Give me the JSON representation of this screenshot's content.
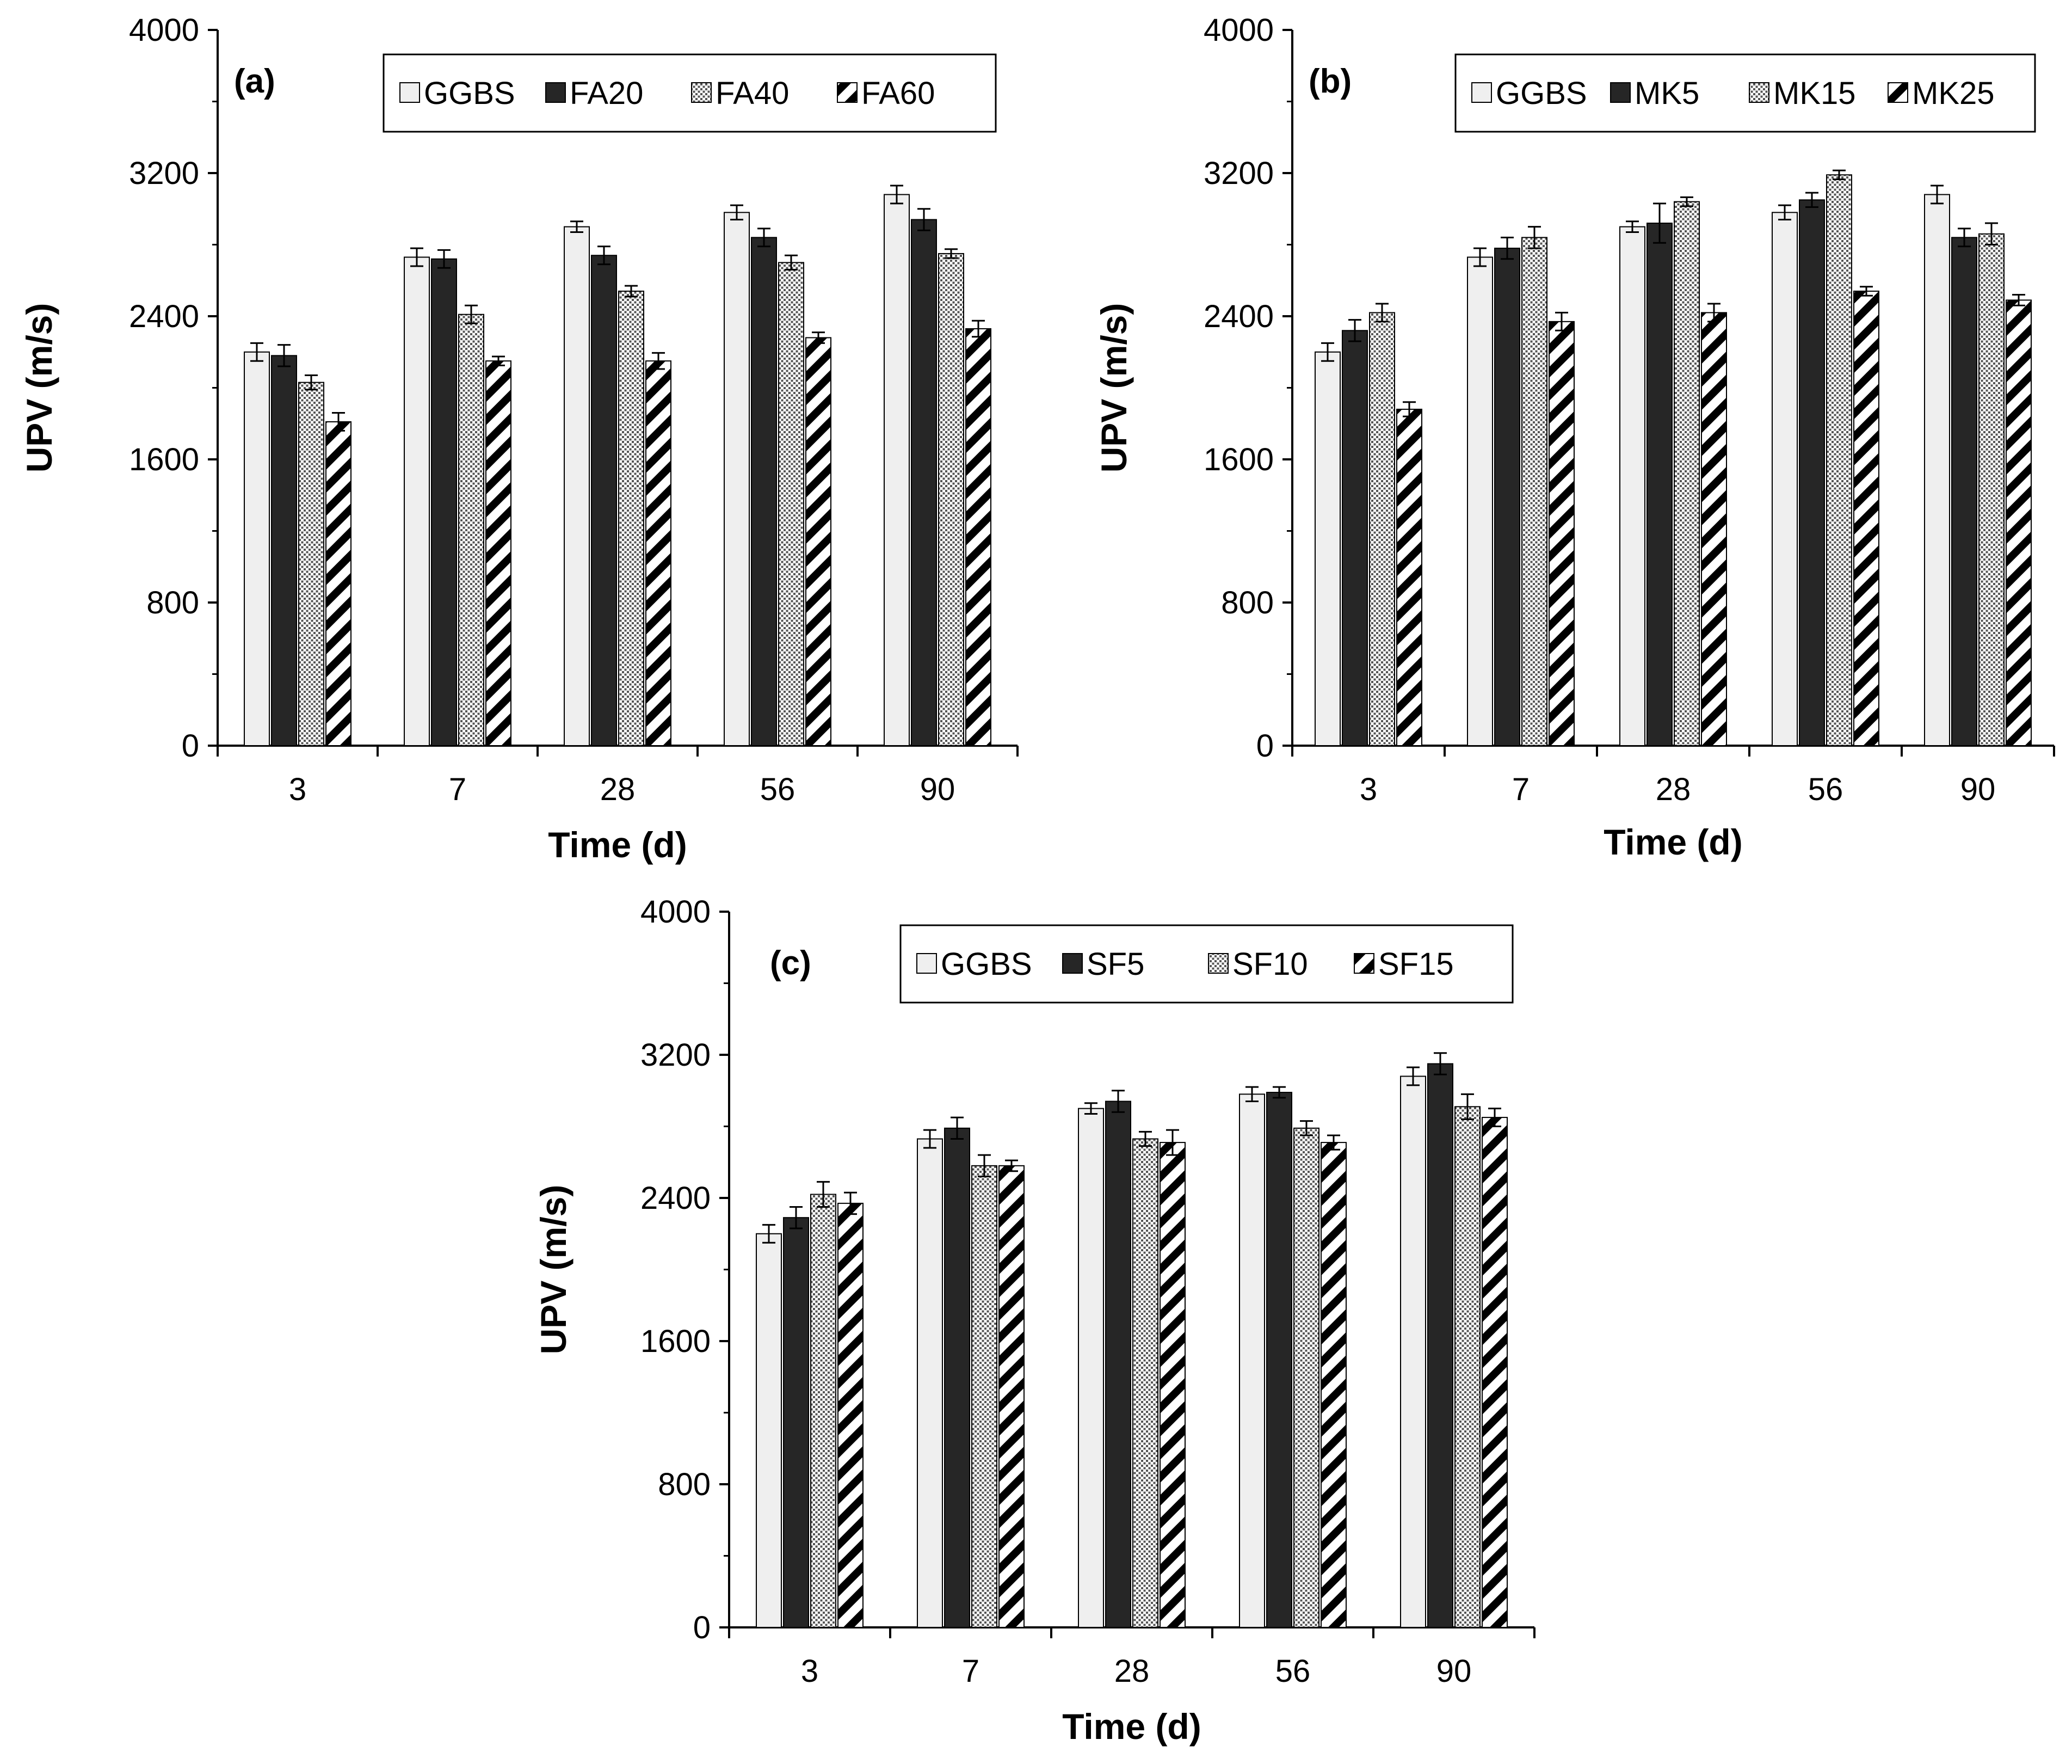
{
  "patterns": {
    "GGBS": {
      "kind": "solid",
      "fill": "#efefef"
    },
    "SOLID": {
      "kind": "solid",
      "fill": "#262626"
    },
    "DOTS": {
      "kind": "dots"
    },
    "HATCH": {
      "kind": "hatch"
    }
  },
  "chart_data": [
    {
      "type": "bar",
      "label": "(a)",
      "xlabel": "Time (d)",
      "ylabel": "UPV (m/s)",
      "ylim": [
        0,
        4000
      ],
      "yticks": [
        "0",
        "800",
        "1600",
        "2400",
        "3200",
        "4000"
      ],
      "categories": [
        "3",
        "7",
        "28",
        "56",
        "90"
      ],
      "legend_position": "top-right",
      "series": [
        {
          "name": "GGBS",
          "pattern": "GGBS",
          "values": [
            2200,
            2730,
            2900,
            2980,
            3080
          ],
          "errors": [
            50,
            50,
            30,
            40,
            50
          ]
        },
        {
          "name": "FA20",
          "pattern": "SOLID",
          "values": [
            2180,
            2720,
            2740,
            2840,
            2940
          ],
          "errors": [
            60,
            50,
            50,
            50,
            60
          ]
        },
        {
          "name": "FA40",
          "pattern": "DOTS",
          "values": [
            2030,
            2410,
            2540,
            2700,
            2750
          ],
          "errors": [
            40,
            50,
            30,
            40,
            25
          ]
        },
        {
          "name": "FA60",
          "pattern": "HATCH",
          "values": [
            1810,
            2150,
            2150,
            2280,
            2330
          ],
          "errors": [
            50,
            25,
            45,
            30,
            45
          ]
        }
      ]
    },
    {
      "type": "bar",
      "label": "(b)",
      "xlabel": "Time (d)",
      "ylabel": "UPV (m/s)",
      "ylim": [
        0,
        4000
      ],
      "yticks": [
        "0",
        "800",
        "1600",
        "2400",
        "3200",
        "4000"
      ],
      "categories": [
        "3",
        "7",
        "28",
        "56",
        "90"
      ],
      "legend_position": "top-right",
      "series": [
        {
          "name": "GGBS",
          "pattern": "GGBS",
          "values": [
            2200,
            2730,
            2900,
            2980,
            3080
          ],
          "errors": [
            50,
            50,
            30,
            40,
            50
          ]
        },
        {
          "name": "MK5",
          "pattern": "SOLID",
          "values": [
            2320,
            2780,
            2920,
            3050,
            2840
          ],
          "errors": [
            60,
            60,
            110,
            40,
            50
          ]
        },
        {
          "name": "MK15",
          "pattern": "DOTS",
          "values": [
            2420,
            2840,
            3040,
            3190,
            2860
          ],
          "errors": [
            50,
            60,
            25,
            25,
            60
          ]
        },
        {
          "name": "MK25",
          "pattern": "HATCH",
          "values": [
            1880,
            2370,
            2420,
            2540,
            2490
          ],
          "errors": [
            40,
            50,
            50,
            25,
            30
          ]
        }
      ]
    },
    {
      "type": "bar",
      "label": "(c)",
      "xlabel": "Time (d)",
      "ylabel": "UPV (m/s)",
      "ylim": [
        0,
        4000
      ],
      "yticks": [
        "0",
        "800",
        "1600",
        "2400",
        "3200",
        "4000"
      ],
      "categories": [
        "3",
        "7",
        "28",
        "56",
        "90"
      ],
      "legend_position": "top-right",
      "series": [
        {
          "name": "GGBS",
          "pattern": "GGBS",
          "values": [
            2200,
            2730,
            2900,
            2980,
            3080
          ],
          "errors": [
            50,
            50,
            30,
            40,
            50
          ]
        },
        {
          "name": "SF5",
          "pattern": "SOLID",
          "values": [
            2290,
            2790,
            2940,
            2990,
            3150
          ],
          "errors": [
            60,
            60,
            60,
            30,
            60
          ]
        },
        {
          "name": "SF10",
          "pattern": "DOTS",
          "values": [
            2420,
            2580,
            2730,
            2790,
            2910
          ],
          "errors": [
            70,
            60,
            40,
            40,
            70
          ]
        },
        {
          "name": "SF15",
          "pattern": "HATCH",
          "values": [
            2370,
            2580,
            2710,
            2710,
            2850
          ],
          "errors": [
            60,
            30,
            70,
            40,
            50
          ]
        }
      ]
    }
  ]
}
